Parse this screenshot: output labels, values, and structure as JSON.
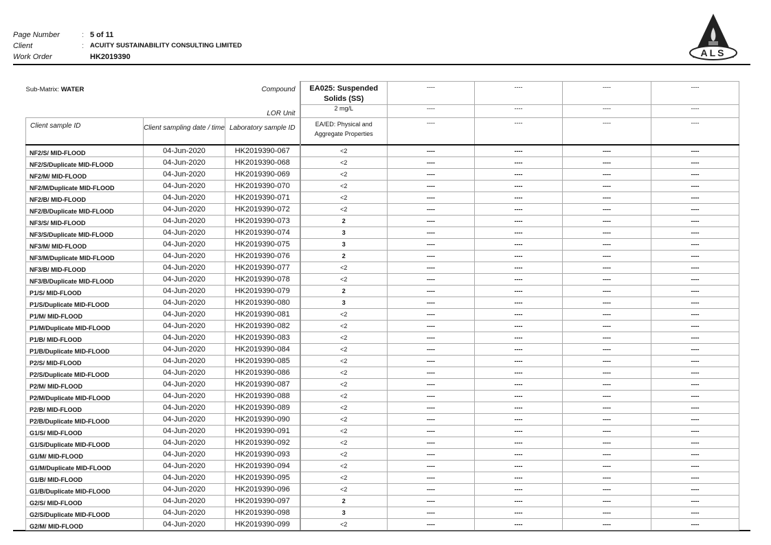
{
  "header": {
    "page_label": "Page Number",
    "page_value": "5 of 11",
    "client_label": "Client",
    "client_value": "ACUITY SUSTAINABILITY CONSULTING LIMITED",
    "work_order_label": "Work Order",
    "work_order_value": "HK2019390",
    "logo_text": "ALS"
  },
  "table": {
    "sub_matrix_label": "Sub-Matrix:",
    "sub_matrix_value": "WATER",
    "compound_label": "Compound",
    "lor_label": "LOR Unit",
    "compounds": [
      "EA025: Suspended Solids (SS)",
      "----",
      "----",
      "----",
      "----"
    ],
    "lor": [
      "2 mg/L",
      "----",
      "----",
      "----",
      "----"
    ],
    "methods": [
      "EA/ED: Physical and Aggregate Properties",
      "----",
      "----",
      "----",
      "----"
    ],
    "col_headers": [
      "Client sample ID",
      "Client sampling date / time",
      "Laboratory sample ID"
    ],
    "empty": "----",
    "rows": [
      [
        "NF2/S/ MID-FLOOD",
        "04-Jun-2020",
        "HK2019390-067",
        "<2"
      ],
      [
        "NF2/S/Duplicate MID-FLOOD",
        "04-Jun-2020",
        "HK2019390-068",
        "<2"
      ],
      [
        "NF2/M/ MID-FLOOD",
        "04-Jun-2020",
        "HK2019390-069",
        "<2"
      ],
      [
        "NF2/M/Duplicate MID-FLOOD",
        "04-Jun-2020",
        "HK2019390-070",
        "<2"
      ],
      [
        "NF2/B/ MID-FLOOD",
        "04-Jun-2020",
        "HK2019390-071",
        "<2"
      ],
      [
        "NF2/B/Duplicate MID-FLOOD",
        "04-Jun-2020",
        "HK2019390-072",
        "<2"
      ],
      [
        "NF3/S/ MID-FLOOD",
        "04-Jun-2020",
        "HK2019390-073",
        "2"
      ],
      [
        "NF3/S/Duplicate MID-FLOOD",
        "04-Jun-2020",
        "HK2019390-074",
        "3"
      ],
      [
        "NF3/M/ MID-FLOOD",
        "04-Jun-2020",
        "HK2019390-075",
        "3"
      ],
      [
        "NF3/M/Duplicate MID-FLOOD",
        "04-Jun-2020",
        "HK2019390-076",
        "2"
      ],
      [
        "NF3/B/ MID-FLOOD",
        "04-Jun-2020",
        "HK2019390-077",
        "<2"
      ],
      [
        "NF3/B/Duplicate MID-FLOOD",
        "04-Jun-2020",
        "HK2019390-078",
        "<2"
      ],
      [
        "P1/S/ MID-FLOOD",
        "04-Jun-2020",
        "HK2019390-079",
        "2"
      ],
      [
        "P1/S/Duplicate MID-FLOOD",
        "04-Jun-2020",
        "HK2019390-080",
        "3"
      ],
      [
        "P1/M/ MID-FLOOD",
        "04-Jun-2020",
        "HK2019390-081",
        "<2"
      ],
      [
        "P1/M/Duplicate MID-FLOOD",
        "04-Jun-2020",
        "HK2019390-082",
        "<2"
      ],
      [
        "P1/B/ MID-FLOOD",
        "04-Jun-2020",
        "HK2019390-083",
        "<2"
      ],
      [
        "P1/B/Duplicate MID-FLOOD",
        "04-Jun-2020",
        "HK2019390-084",
        "<2"
      ],
      [
        "P2/S/ MID-FLOOD",
        "04-Jun-2020",
        "HK2019390-085",
        "<2"
      ],
      [
        "P2/S/Duplicate MID-FLOOD",
        "04-Jun-2020",
        "HK2019390-086",
        "<2"
      ],
      [
        "P2/M/ MID-FLOOD",
        "04-Jun-2020",
        "HK2019390-087",
        "<2"
      ],
      [
        "P2/M/Duplicate MID-FLOOD",
        "04-Jun-2020",
        "HK2019390-088",
        "<2"
      ],
      [
        "P2/B/ MID-FLOOD",
        "04-Jun-2020",
        "HK2019390-089",
        "<2"
      ],
      [
        "P2/B/Duplicate MID-FLOOD",
        "04-Jun-2020",
        "HK2019390-090",
        "<2"
      ],
      [
        "G1/S/ MID-FLOOD",
        "04-Jun-2020",
        "HK2019390-091",
        "<2"
      ],
      [
        "G1/S/Duplicate MID-FLOOD",
        "04-Jun-2020",
        "HK2019390-092",
        "<2"
      ],
      [
        "G1/M/ MID-FLOOD",
        "04-Jun-2020",
        "HK2019390-093",
        "<2"
      ],
      [
        "G1/M/Duplicate MID-FLOOD",
        "04-Jun-2020",
        "HK2019390-094",
        "<2"
      ],
      [
        "G1/B/ MID-FLOOD",
        "04-Jun-2020",
        "HK2019390-095",
        "<2"
      ],
      [
        "G1/B/Duplicate MID-FLOOD",
        "04-Jun-2020",
        "HK2019390-096",
        "<2"
      ],
      [
        "G2/S/ MID-FLOOD",
        "04-Jun-2020",
        "HK2019390-097",
        "2"
      ],
      [
        "G2/S/Duplicate MID-FLOOD",
        "04-Jun-2020",
        "HK2019390-098",
        "3"
      ],
      [
        "G2/M/ MID-FLOOD",
        "04-Jun-2020",
        "HK2019390-099",
        "<2"
      ]
    ]
  }
}
